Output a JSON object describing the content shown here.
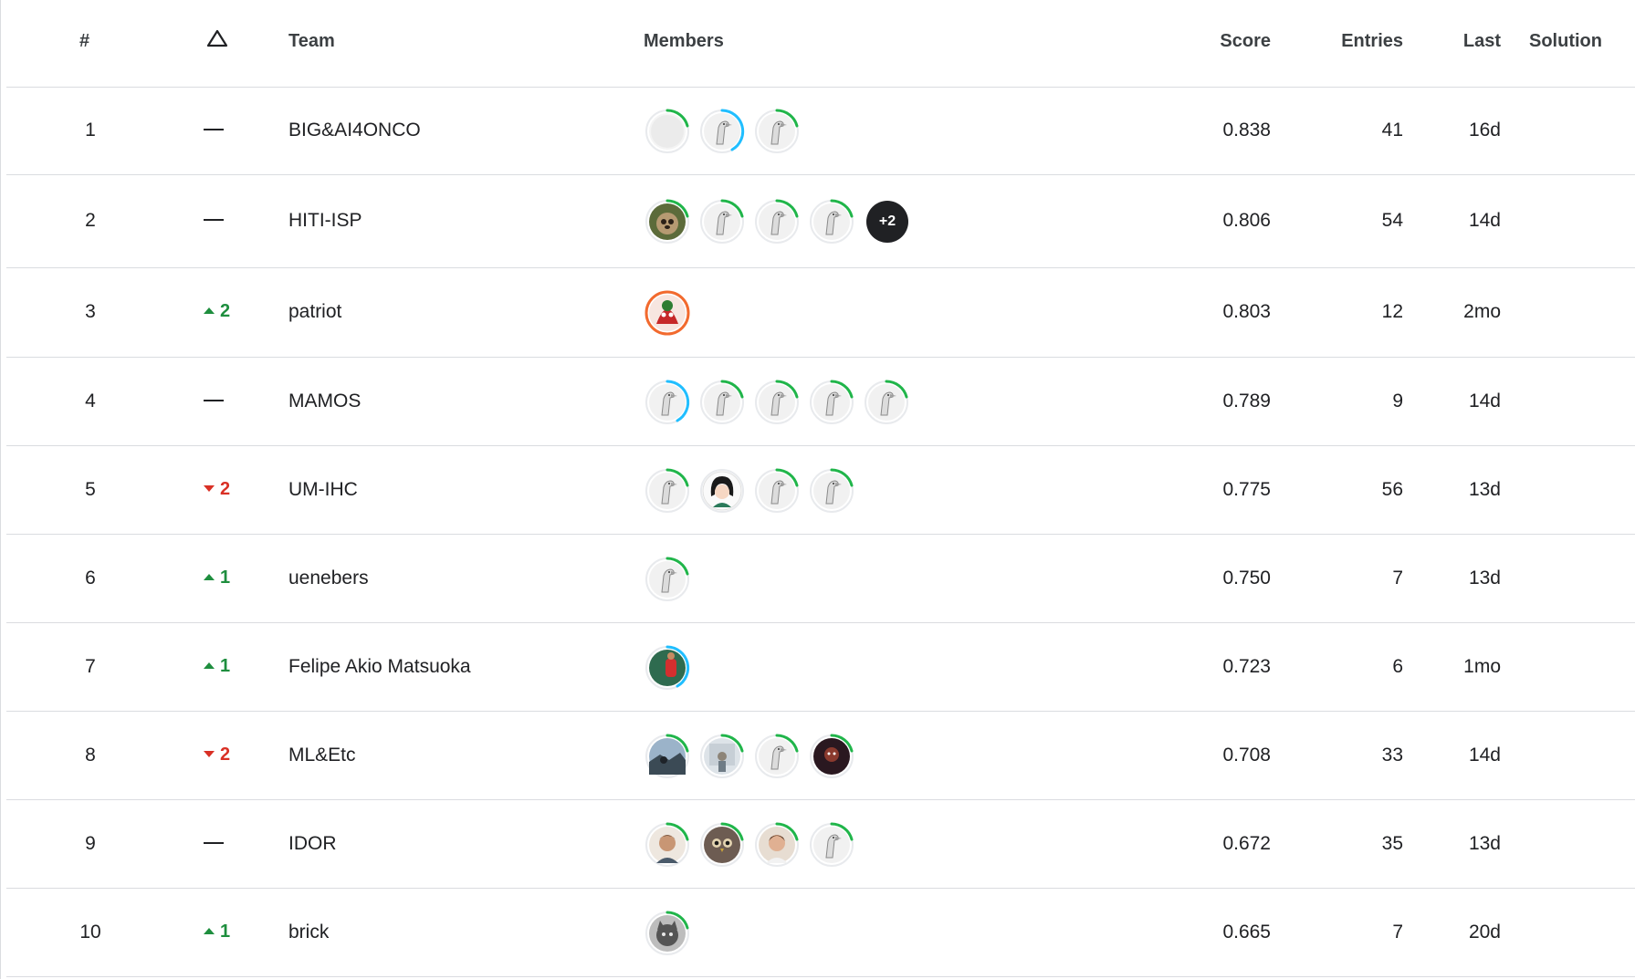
{
  "header": {
    "rank": "#",
    "change_icon": "delta-triangle-icon",
    "team": "Team",
    "members": "Members",
    "score": "Score",
    "entries": "Entries",
    "last": "Last",
    "solution": "Solution"
  },
  "colors": {
    "up": "#1e8e3e",
    "down": "#d93025",
    "ring_green": "#20b54a",
    "ring_blue": "#20beff",
    "ring_orange": "#f26a2e"
  },
  "rows": [
    {
      "rank": "1",
      "change_dir": "none",
      "change": "",
      "team": "BIG&AI4ONCO",
      "score": "0.838",
      "entries": "41",
      "last": "16d",
      "members": [
        {
          "avatar": "blank",
          "ring": "green"
        },
        {
          "avatar": "goose",
          "ring": "blue"
        },
        {
          "avatar": "goose",
          "ring": "green"
        }
      ],
      "more": ""
    },
    {
      "rank": "2",
      "change_dir": "none",
      "change": "",
      "team": "HITI-ISP",
      "score": "0.806",
      "entries": "54",
      "last": "14d",
      "members": [
        {
          "avatar": "sloth",
          "ring": "green"
        },
        {
          "avatar": "goose",
          "ring": "green"
        },
        {
          "avatar": "goose",
          "ring": "green"
        },
        {
          "avatar": "goose",
          "ring": "green"
        }
      ],
      "more": "+2"
    },
    {
      "rank": "3",
      "change_dir": "up",
      "change": "2",
      "team": "patriot",
      "score": "0.803",
      "entries": "12",
      "last": "2mo",
      "members": [
        {
          "avatar": "mask",
          "ring": "orange"
        }
      ],
      "more": ""
    },
    {
      "rank": "4",
      "change_dir": "none",
      "change": "",
      "team": "MAMOS",
      "score": "0.789",
      "entries": "9",
      "last": "14d",
      "members": [
        {
          "avatar": "goose",
          "ring": "blue"
        },
        {
          "avatar": "goose",
          "ring": "green"
        },
        {
          "avatar": "goose",
          "ring": "green"
        },
        {
          "avatar": "goose",
          "ring": "green"
        },
        {
          "avatar": "goose",
          "ring": "green"
        }
      ],
      "more": ""
    },
    {
      "rank": "5",
      "change_dir": "down",
      "change": "2",
      "team": "UM-IHC",
      "score": "0.775",
      "entries": "56",
      "last": "13d",
      "members": [
        {
          "avatar": "goose",
          "ring": "green"
        },
        {
          "avatar": "girl",
          "ring": "none"
        },
        {
          "avatar": "goose",
          "ring": "green"
        },
        {
          "avatar": "goose",
          "ring": "green"
        }
      ],
      "more": ""
    },
    {
      "rank": "6",
      "change_dir": "up",
      "change": "1",
      "team": "uenebers",
      "score": "0.750",
      "entries": "7",
      "last": "13d",
      "members": [
        {
          "avatar": "goose",
          "ring": "green"
        }
      ],
      "more": ""
    },
    {
      "rank": "7",
      "change_dir": "up",
      "change": "1",
      "team": "Felipe Akio Matsuoka",
      "score": "0.723",
      "entries": "6",
      "last": "1mo",
      "members": [
        {
          "avatar": "player",
          "ring": "blue"
        }
      ],
      "more": ""
    },
    {
      "rank": "8",
      "change_dir": "down",
      "change": "2",
      "team": "ML&Etc",
      "score": "0.708",
      "entries": "33",
      "last": "14d",
      "members": [
        {
          "avatar": "landscape",
          "ring": "green"
        },
        {
          "avatar": "office",
          "ring": "green"
        },
        {
          "avatar": "goose",
          "ring": "green"
        },
        {
          "avatar": "dark",
          "ring": "green"
        }
      ],
      "more": ""
    },
    {
      "rank": "9",
      "change_dir": "none",
      "change": "",
      "team": "IDOR",
      "score": "0.672",
      "entries": "35",
      "last": "13d",
      "members": [
        {
          "avatar": "face",
          "ring": "green"
        },
        {
          "avatar": "owl",
          "ring": "green"
        },
        {
          "avatar": "face2",
          "ring": "green"
        },
        {
          "avatar": "goose",
          "ring": "green"
        }
      ],
      "more": ""
    },
    {
      "rank": "10",
      "change_dir": "up",
      "change": "1",
      "team": "brick",
      "score": "0.665",
      "entries": "7",
      "last": "20d",
      "members": [
        {
          "avatar": "cat",
          "ring": "green"
        }
      ],
      "more": ""
    }
  ]
}
